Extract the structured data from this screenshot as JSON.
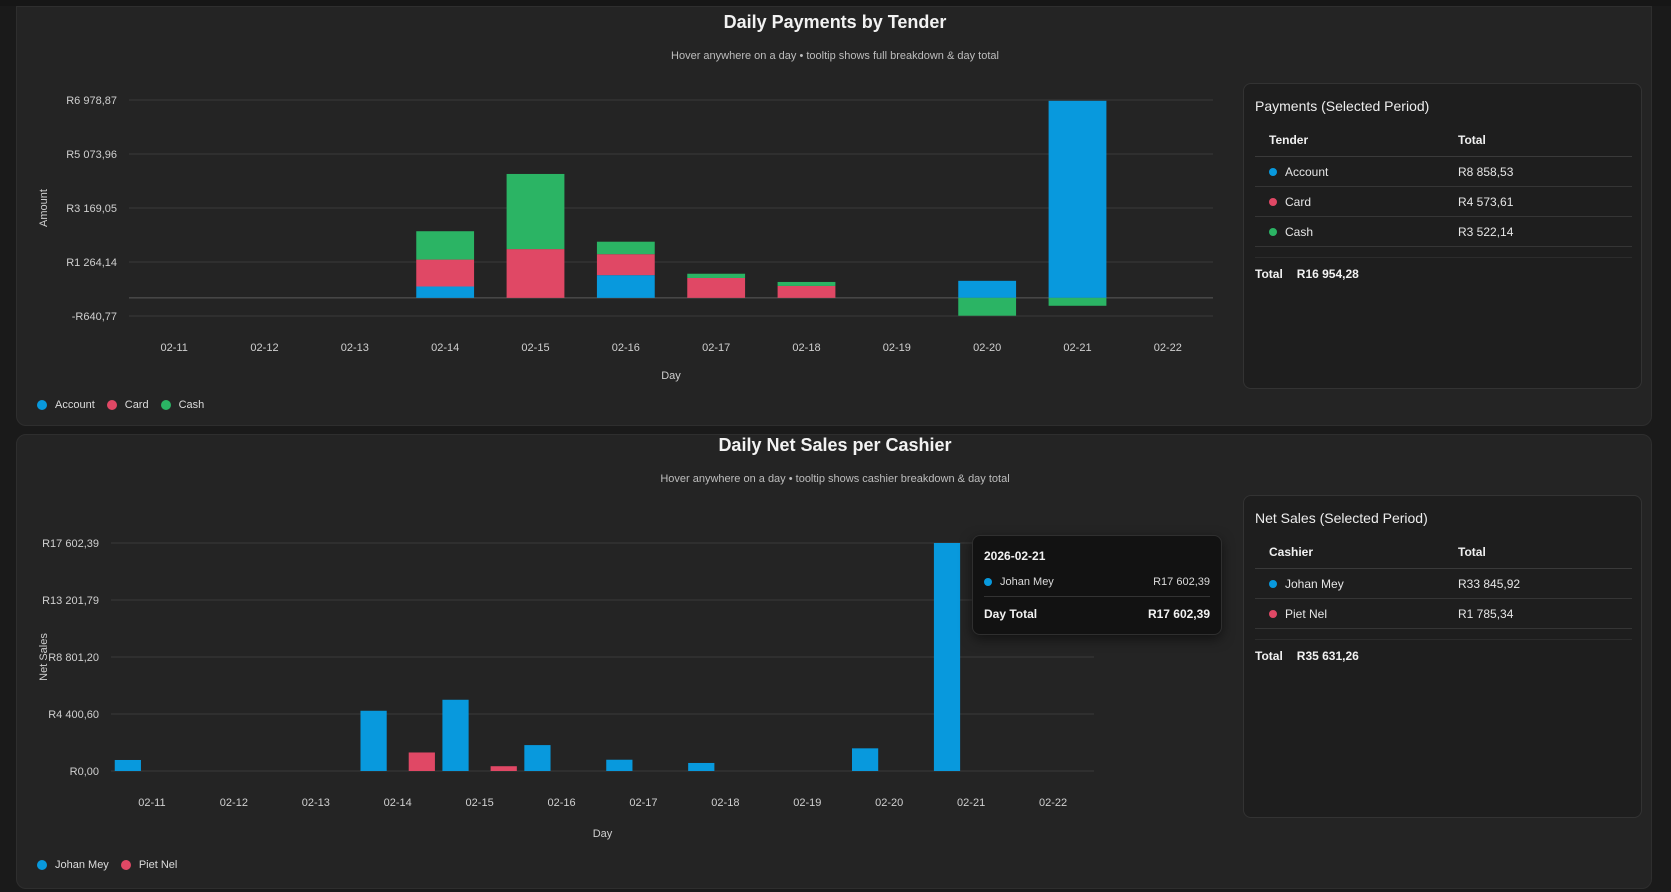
{
  "colors": {
    "account": "#0899dd",
    "card": "#e04865",
    "cash": "#2bb464",
    "johan": "#0899dd",
    "piet": "#e04865",
    "grid": "#3a3a3a"
  },
  "payments_card": {
    "title": "Daily Payments by Tender",
    "subtitle": "Hover anywhere on a day • tooltip shows full breakdown & day total",
    "legend": [
      {
        "label": "Account",
        "color": "#0899dd"
      },
      {
        "label": "Card",
        "color": "#e04865"
      },
      {
        "label": "Cash",
        "color": "#2bb464"
      }
    ],
    "summary": {
      "title": "Payments (Selected Period)",
      "col_tender": "Tender",
      "col_total": "Total",
      "rows": [
        {
          "label": "Account",
          "value": "R8 858,53",
          "color": "#0899dd"
        },
        {
          "label": "Card",
          "value": "R4 573,61",
          "color": "#e04865"
        },
        {
          "label": "Cash",
          "value": "R3 522,14",
          "color": "#2bb464"
        }
      ],
      "total_label": "Total",
      "total_value": "R16 954,28"
    }
  },
  "sales_card": {
    "title": "Daily Net Sales per Cashier",
    "subtitle": "Hover anywhere on a day • tooltip shows cashier breakdown & day total",
    "legend": [
      {
        "label": "Johan Mey",
        "color": "#0899dd"
      },
      {
        "label": "Piet Nel",
        "color": "#e04865"
      }
    ],
    "summary": {
      "title": "Net Sales (Selected Period)",
      "col_cashier": "Cashier",
      "col_total": "Total",
      "rows": [
        {
          "label": "Johan Mey",
          "value": "R33 845,92",
          "color": "#0899dd"
        },
        {
          "label": "Piet Nel",
          "value": "R1 785,34",
          "color": "#e04865"
        }
      ],
      "total_label": "Total",
      "total_value": "R35 631,26"
    },
    "tooltip": {
      "date": "2026-02-21",
      "rows": [
        {
          "label": "Johan Mey",
          "value": "R17 602,39",
          "color": "#0899dd"
        }
      ],
      "total_label": "Day Total",
      "total_value": "R17 602,39"
    }
  },
  "chart_data": [
    {
      "type": "bar",
      "stacked": true,
      "xlabel": "Day",
      "ylabel": "Amount",
      "categories": [
        "02-11",
        "02-12",
        "02-13",
        "02-14",
        "02-15",
        "02-16",
        "02-17",
        "02-18",
        "02-19",
        "02-20",
        "02-21",
        "02-22"
      ],
      "yticks": [
        -640.77,
        1264.14,
        3169.05,
        5073.96,
        6978.87
      ],
      "ytick_labels": [
        "-R640,77",
        "R1 264,14",
        "R3 169,05",
        "R5 073,96",
        "R6 978,87"
      ],
      "ylim": [
        -640.77,
        6978.87
      ],
      "grid": true,
      "legend_position": "bottom-left",
      "series": [
        {
          "name": "Account",
          "color": "#0899dd",
          "values": [
            0,
            0,
            0,
            400,
            0,
            800,
            0,
            0,
            0,
            600,
            6950,
            0
          ]
        },
        {
          "name": "Card",
          "color": "#e04865",
          "values": [
            0,
            0,
            0,
            950,
            1720,
            740,
            700,
            420,
            0,
            0,
            0,
            0
          ]
        },
        {
          "name": "Cash",
          "color": "#2bb464",
          "values": [
            0,
            0,
            0,
            1000,
            2650,
            440,
            150,
            140,
            0,
            -630,
            -280,
            0
          ]
        }
      ]
    },
    {
      "type": "bar",
      "stacked": false,
      "xlabel": "Day",
      "ylabel": "Net Sales",
      "categories": [
        "02-11",
        "02-12",
        "02-13",
        "02-14",
        "02-15",
        "02-16",
        "02-17",
        "02-18",
        "02-19",
        "02-20",
        "02-21",
        "02-22"
      ],
      "yticks": [
        0,
        4400.6,
        8801.2,
        13201.79,
        17602.39
      ],
      "ytick_labels": [
        "R0,00",
        "R4 400,60",
        "R8 801,20",
        "R13 201,79",
        "R17 602,39"
      ],
      "ylim": [
        0,
        17602.39
      ],
      "grid": true,
      "legend_position": "bottom-left",
      "series": [
        {
          "name": "Johan Mey",
          "color": "#0899dd",
          "values": [
            850,
            0,
            0,
            4650,
            5500,
            2000,
            870,
            620,
            0,
            1750,
            17602.39,
            0
          ]
        },
        {
          "name": "Piet Nel",
          "color": "#e04865",
          "values": [
            0,
            0,
            0,
            1430,
            370,
            0,
            0,
            0,
            0,
            0,
            0,
            0
          ]
        }
      ]
    }
  ]
}
